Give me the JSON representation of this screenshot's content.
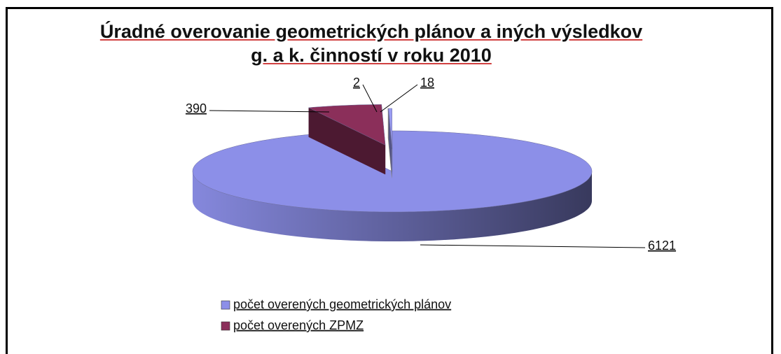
{
  "chart_data": {
    "type": "pie3d",
    "title": "Úradné overovanie geometrických plánov a iných výsledkov g. a k. činností v roku 2010",
    "categories": [
      "počet overených geometrických plánov",
      "počet overených ZPMZ",
      null,
      null
    ],
    "values": [
      6121,
      390,
      2,
      18
    ],
    "colors": [
      "#8c8fe8",
      "#8b2f5a",
      "#f2efcf",
      "#9a9cf2"
    ]
  }
}
